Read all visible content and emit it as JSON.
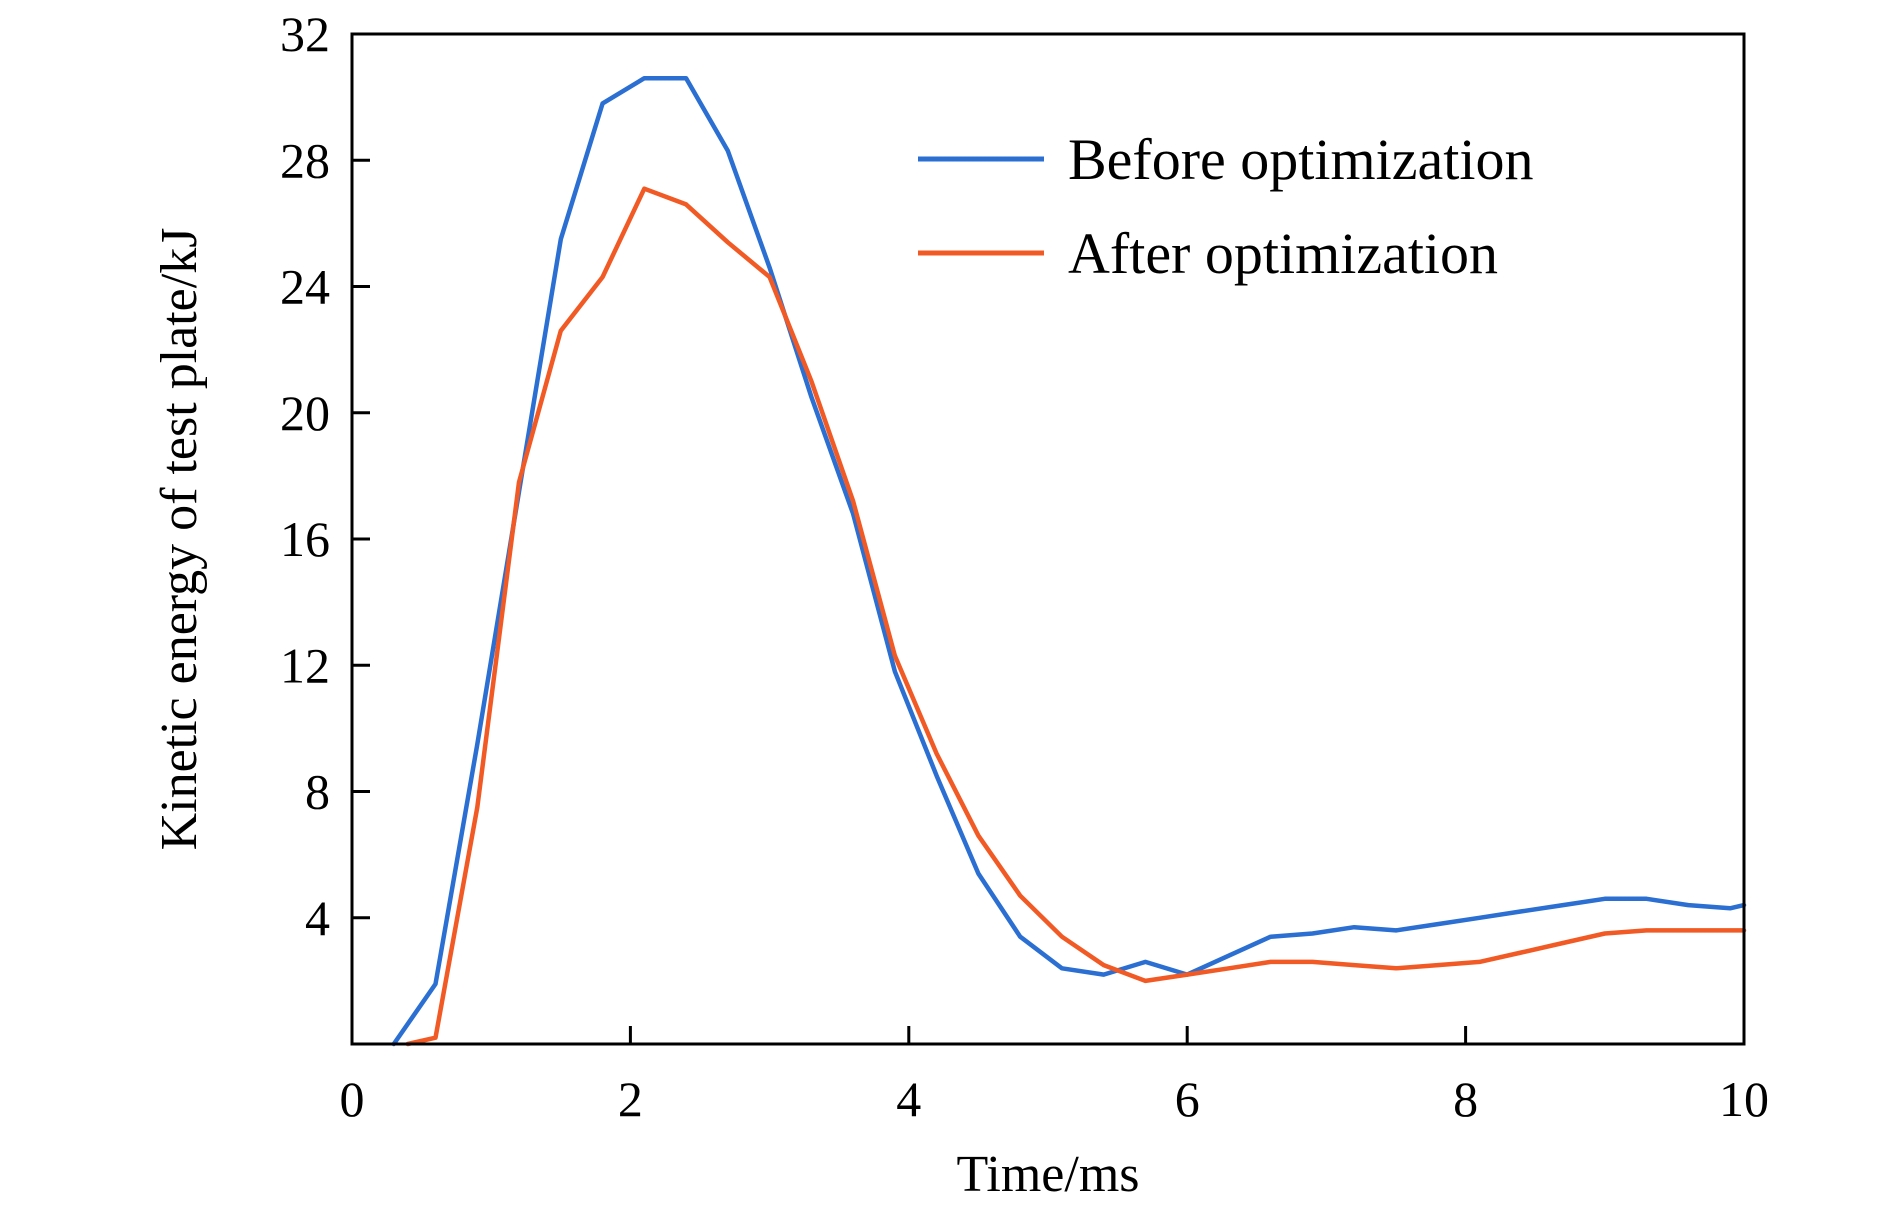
{
  "chart_data": {
    "type": "line",
    "title": "",
    "xlabel": "Time/ms",
    "ylabel": "Kinetic energy of test plate/kJ",
    "xlim": [
      0,
      10
    ],
    "ylim": [
      0,
      32
    ],
    "xticks": [
      0,
      2,
      4,
      6,
      8,
      10
    ],
    "yticks": [
      4,
      8,
      12,
      16,
      20,
      24,
      28,
      32
    ],
    "grid": false,
    "legend_position": "top-right",
    "series": [
      {
        "name": "Before optimization",
        "color": "#2a6fd1",
        "x": [
          0.3,
          0.6,
          0.9,
          1.2,
          1.5,
          1.8,
          2.1,
          2.4,
          2.7,
          3.0,
          3.3,
          3.6,
          3.9,
          4.2,
          4.5,
          4.8,
          5.1,
          5.4,
          5.7,
          6.0,
          6.3,
          6.6,
          6.9,
          7.2,
          7.5,
          7.8,
          8.1,
          8.4,
          8.7,
          9.0,
          9.3,
          9.6,
          9.9,
          10.0
        ],
        "y": [
          0.0,
          1.9,
          9.5,
          17.5,
          25.5,
          29.8,
          30.6,
          30.6,
          28.3,
          24.6,
          20.5,
          16.8,
          11.8,
          8.5,
          5.4,
          3.4,
          2.4,
          2.2,
          2.6,
          2.2,
          2.8,
          3.4,
          3.5,
          3.7,
          3.6,
          3.8,
          4.0,
          4.2,
          4.4,
          4.6,
          4.6,
          4.4,
          4.3,
          4.4
        ]
      },
      {
        "name": "After optimization",
        "color": "#f15a24",
        "x": [
          0.4,
          0.6,
          0.9,
          1.2,
          1.5,
          1.8,
          2.1,
          2.4,
          2.7,
          3.0,
          3.3,
          3.6,
          3.9,
          4.2,
          4.5,
          4.8,
          5.1,
          5.4,
          5.7,
          6.0,
          6.3,
          6.6,
          6.9,
          7.2,
          7.5,
          7.8,
          8.1,
          8.4,
          8.7,
          9.0,
          9.3,
          9.6,
          9.9,
          10.0
        ],
        "y": [
          0.0,
          0.2,
          7.5,
          17.8,
          22.6,
          24.3,
          27.1,
          26.6,
          25.4,
          24.3,
          21.0,
          17.2,
          12.3,
          9.2,
          6.6,
          4.7,
          3.4,
          2.5,
          2.0,
          2.2,
          2.4,
          2.6,
          2.6,
          2.5,
          2.4,
          2.5,
          2.6,
          2.9,
          3.2,
          3.5,
          3.6,
          3.6,
          3.6,
          3.6
        ]
      }
    ]
  }
}
